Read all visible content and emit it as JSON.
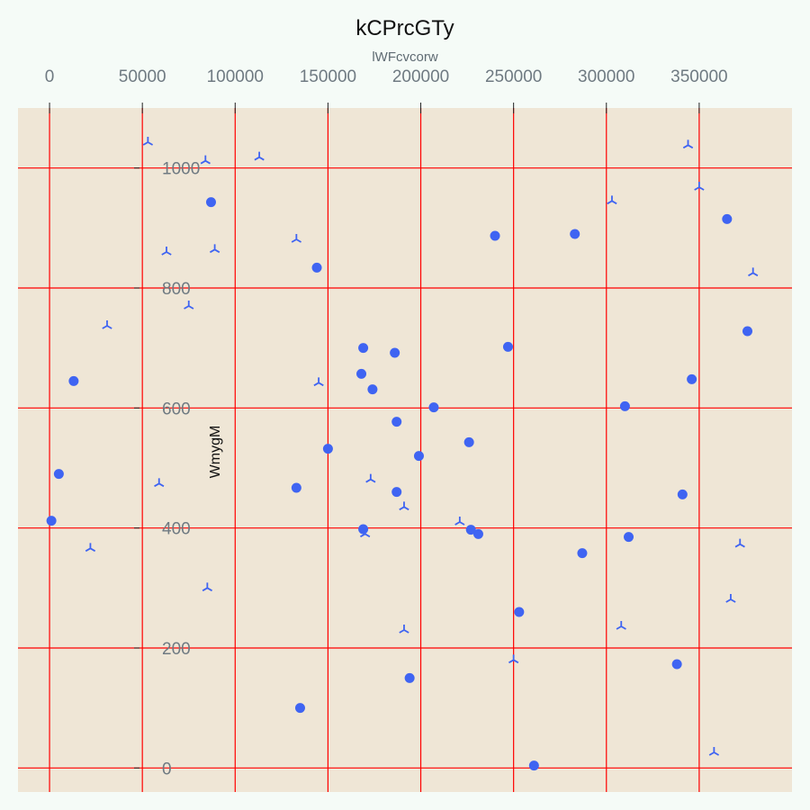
{
  "chart_data": {
    "type": "scatter",
    "title": "kCPrcGTy",
    "subtitle": "lWFcvcorw",
    "ylabel": "WmygM",
    "xlim": [
      -17000,
      400000
    ],
    "ylim": [
      -40,
      1100
    ],
    "x_ticks": [
      0,
      50000,
      100000,
      150000,
      200000,
      250000,
      300000,
      350000
    ],
    "x_tick_labels": [
      "0",
      "50000",
      "100000",
      "150000",
      "200000",
      "250000",
      "300000",
      "350000"
    ],
    "y_ticks": [
      0,
      200,
      400,
      600,
      800,
      1000
    ],
    "y_tick_labels": [
      "0",
      "200",
      "400",
      "600",
      "800",
      "1000"
    ],
    "grid": true,
    "x_axis_position": "top",
    "colors": {
      "background": "#f5fbf7",
      "plot_background": "#efe6d6",
      "grid": "#ff0000",
      "marker": "#3f64f2",
      "tick_label": "#6f7a82"
    },
    "series": [
      {
        "marker": "circle",
        "points": [
          [
            87000,
            943
          ],
          [
            144000,
            834
          ],
          [
            240000,
            887
          ],
          [
            283000,
            890
          ],
          [
            365000,
            915
          ],
          [
            13000,
            645
          ],
          [
            169000,
            700
          ],
          [
            186000,
            692
          ],
          [
            247000,
            702
          ],
          [
            376000,
            728
          ],
          [
            168000,
            657
          ],
          [
            174000,
            631
          ],
          [
            207000,
            601
          ],
          [
            310000,
            603
          ],
          [
            346000,
            648
          ],
          [
            187000,
            577
          ],
          [
            150000,
            532
          ],
          [
            199000,
            520
          ],
          [
            226000,
            543
          ],
          [
            5000,
            490
          ],
          [
            133000,
            467
          ],
          [
            187000,
            460
          ],
          [
            341000,
            456
          ],
          [
            1000,
            412
          ],
          [
            169000,
            398
          ],
          [
            227000,
            397
          ],
          [
            231000,
            390
          ],
          [
            312000,
            385
          ],
          [
            287000,
            358
          ],
          [
            253000,
            260
          ],
          [
            194000,
            150
          ],
          [
            338000,
            173
          ],
          [
            135000,
            100
          ],
          [
            261000,
            4
          ]
        ]
      },
      {
        "marker": "tri",
        "points": [
          [
            53000,
            1043
          ],
          [
            84000,
            1012
          ],
          [
            113000,
            1018
          ],
          [
            344000,
            1038
          ],
          [
            350000,
            968
          ],
          [
            303000,
            945
          ],
          [
            133000,
            881
          ],
          [
            63000,
            860
          ],
          [
            89000,
            864
          ],
          [
            379000,
            825
          ],
          [
            75000,
            770
          ],
          [
            31000,
            737
          ],
          [
            145000,
            642
          ],
          [
            59000,
            474
          ],
          [
            173000,
            481
          ],
          [
            191000,
            435
          ],
          [
            221000,
            410
          ],
          [
            170000,
            390
          ],
          [
            22000,
            366
          ],
          [
            372000,
            373
          ],
          [
            85000,
            300
          ],
          [
            367000,
            281
          ],
          [
            191000,
            230
          ],
          [
            308000,
            236
          ],
          [
            250000,
            180
          ],
          [
            358000,
            26
          ]
        ]
      }
    ]
  }
}
